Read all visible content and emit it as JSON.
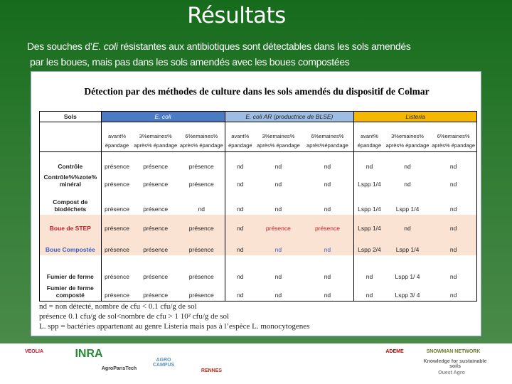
{
  "slide": {
    "title": "Résultats",
    "subtitle": {
      "pre": "Des souches d’",
      "italic": "E. coli",
      "post": " résistantes aux antibiotiques sont détectables dans les sols amendés",
      "line2": "par les boues, mais pas dans les sols amendés avec les boues compostées"
    }
  },
  "table": {
    "title": "Détection par des méthodes de culture dans les sols amendés du dispositif de Colmar",
    "groups": [
      {
        "label": "Sols",
        "color": "#ffffff"
      },
      {
        "label": "E. coli",
        "color": "#4a7cc4"
      },
      {
        "label": "E. coli AR (productrice de BLSE)",
        "color": "#9dbde3"
      },
      {
        "label": "Listeria",
        "color": "#f5b800"
      }
    ],
    "subheaders": [
      "avant% épandage",
      "3%emaines% après% épandage",
      "6%emaines% après% épandage",
      "avant% épandage",
      "3%emaines% après% épandage",
      "6%emaines% après%épandage",
      "avant% épandage",
      "3%emaines% après% épandage",
      "6%emaines% après% épandage"
    ],
    "rows": [
      {
        "label": "Contrôle",
        "style": "normal",
        "cells": [
          "présence",
          "présence",
          "présence",
          "nd",
          "nd",
          "nd",
          "nd",
          "nd",
          "nd"
        ]
      },
      {
        "label": "Contrôle%%zote% minéral",
        "style": "normal",
        "cells": [
          "présence",
          "présence",
          "présence",
          "nd",
          "nd",
          "nd",
          "Lspp 1/4",
          "nd",
          "nd"
        ]
      },
      {
        "label": "Compost de biodéchets",
        "style": "normal",
        "cells": [
          "présence",
          "présence",
          "nd",
          "nd",
          "nd",
          "nd",
          "Lspp 1/4",
          "Lspp 1/4",
          "nd"
        ]
      },
      {
        "label": "Boue de STEP",
        "style": "red",
        "cells": [
          "présence",
          "présence",
          "présence",
          "nd",
          "présence",
          "présence",
          "Lspp 1/4",
          "nd",
          "nd"
        ]
      },
      {
        "label": "Boue Compostée",
        "style": "blue",
        "cells": [
          "présence",
          "présence",
          "présence",
          "nd",
          "nd",
          "nd",
          "Lspp 2/4",
          "Lspp 1/4",
          "nd"
        ]
      },
      {
        "label": "Fumier de ferme",
        "style": "normal",
        "cells": [
          "présence",
          "présence",
          "présence",
          "nd",
          "nd",
          "nd",
          "nd",
          "Lspp 1/ 4",
          "nd"
        ]
      },
      {
        "label": "Fumier de ferme composté",
        "style": "normal",
        "cells": [
          "présence",
          "présence",
          "présence",
          "nd",
          "nd",
          "nd",
          "nd",
          "Lspp 3/ 4",
          "nd"
        ]
      }
    ],
    "notes": [
      "nd = non détecté,  nombre de cfu < 0.1 cfu/g de sol",
      "présence   0.1 cfu/g de sol<nombre de cfu > 1 10² cfu/g de sol",
      "L. spp = bactéries appartenant au genre Listeria mais pas à l’espèce L. monocytogenes"
    ]
  },
  "logos": [
    "VEOLIA",
    "INRA",
    "AgroParisTech",
    "AGRO CAMPUS",
    "RENNES",
    "ADEME",
    "SNOWMAN NETWORK",
    "Knowledge for sustainable soils",
    "Ouest Agro"
  ]
}
